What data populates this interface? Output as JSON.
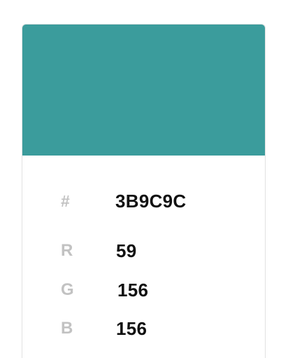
{
  "swatch": {
    "color": "#3B9C9C"
  },
  "hex": {
    "label": "#",
    "value": "3B9C9C"
  },
  "rgb": {
    "r": {
      "label": "R",
      "value": "59"
    },
    "g": {
      "label": "G",
      "value": "156"
    },
    "b": {
      "label": "B",
      "value": "156"
    }
  }
}
